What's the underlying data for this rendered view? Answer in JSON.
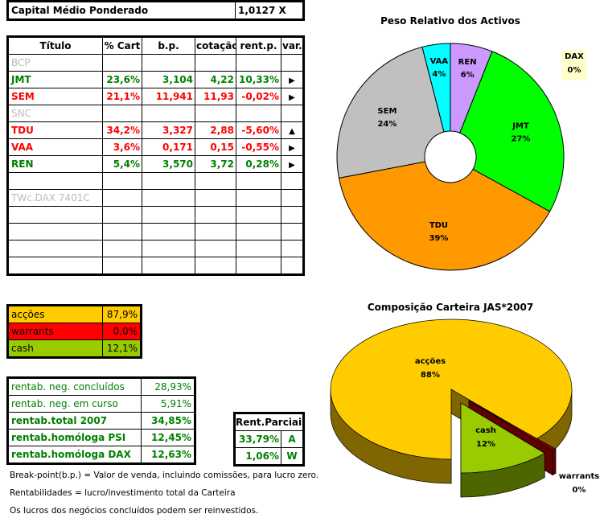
{
  "capital": {
    "label": "Capital Médio Ponderado",
    "value": "1,0127 X"
  },
  "holdings": {
    "headers": [
      "Título",
      "% Cart",
      "b.p.",
      "cotação",
      "rent.p.",
      "var."
    ],
    "rows": [
      {
        "titulo": "BCP",
        "pct": "",
        "bp": "",
        "cot": "",
        "rent": "",
        "var": "",
        "style": "grey"
      },
      {
        "titulo": "JMT",
        "pct": "23,6%",
        "bp": "3,104",
        "cot": "4,22",
        "rent": "10,33%",
        "var": "right",
        "style": "g"
      },
      {
        "titulo": "SEM",
        "pct": "21,1%",
        "bp": "11,941",
        "cot": "11,93",
        "rent": "-0,02%",
        "var": "right",
        "style": "red"
      },
      {
        "titulo": "SNC",
        "pct": "",
        "bp": "",
        "cot": "",
        "rent": "",
        "var": "",
        "style": "grey"
      },
      {
        "titulo": "TDU",
        "pct": "34,2%",
        "bp": "3,327",
        "cot": "2,88",
        "rent": "-5,60%",
        "var": "up",
        "style": "red"
      },
      {
        "titulo": "VAA",
        "pct": "3,6%",
        "bp": "0,171",
        "cot": "0,15",
        "rent": "-0,55%",
        "var": "right",
        "style": "red"
      },
      {
        "titulo": "REN",
        "pct": "5,4%",
        "bp": "3,570",
        "cot": "3,72",
        "rent": "0,28%",
        "var": "right",
        "style": "g"
      },
      {
        "titulo": "",
        "pct": "",
        "bp": "",
        "cot": "",
        "rent": "",
        "var": "",
        "style": ""
      },
      {
        "titulo": "TWc.DAX 7401C",
        "pct": "",
        "bp": "",
        "cot": "",
        "rent": "",
        "var": "",
        "style": "grey"
      },
      {
        "titulo": "",
        "pct": "",
        "bp": "",
        "cot": "",
        "rent": "",
        "var": "",
        "style": ""
      },
      {
        "titulo": "",
        "pct": "",
        "bp": "",
        "cot": "",
        "rent": "",
        "var": "",
        "style": ""
      },
      {
        "titulo": "",
        "pct": "",
        "bp": "",
        "cot": "",
        "rent": "",
        "var": "",
        "style": ""
      },
      {
        "titulo": "",
        "pct": "",
        "bp": "",
        "cot": "",
        "rent": "",
        "var": "",
        "style": ""
      }
    ]
  },
  "allocation": [
    {
      "label": "acções",
      "value": "87,9%",
      "color": "#ffcc00"
    },
    {
      "label": "warrants",
      "value": "0,0%",
      "color": "#ff0000"
    },
    {
      "label": "cash",
      "value": "12,1%",
      "color": "#99cc00"
    }
  ],
  "returns": [
    {
      "label": "rentab. neg. concluídos",
      "value": "28,93%",
      "bold": false
    },
    {
      "label": "rentab. neg. em curso",
      "value": "5,91%",
      "bold": false
    },
    {
      "label": "rentab.total 2007",
      "value": "34,85%",
      "bold": true
    },
    {
      "label": "rentab.homóloga PSI",
      "value": "12,45%",
      "bold": true
    },
    {
      "label": "rentab.homóloga DAX",
      "value": "12,63%",
      "bold": true
    }
  ],
  "partial": {
    "header": "Rent.Parciais",
    "rows": [
      {
        "value": "33,79%",
        "tag": "A"
      },
      {
        "value": "1,06%",
        "tag": "W"
      }
    ]
  },
  "notes": [
    "Break-point(b.p.) = Valor de venda, incluindo comissões, para lucro zero.",
    "Rentabilidades = lucro/investimento total da Carteira",
    "Os lucros dos negócios concluídos podem ser reinvestidos."
  ],
  "chart_data": [
    {
      "type": "pie",
      "title": "Peso Relativo dos Activos",
      "donut": true,
      "slices": [
        {
          "label": "REN",
          "value": 6,
          "color": "#cc99ff"
        },
        {
          "label": "JMT",
          "value": 27,
          "color": "#00ff00"
        },
        {
          "label": "TDU",
          "value": 39,
          "color": "#ff9900"
        },
        {
          "label": "SEM",
          "value": 24,
          "color": "#c0c0c0"
        },
        {
          "label": "VAA",
          "value": 4,
          "color": "#00ffff"
        }
      ],
      "legend": {
        "label": "DAX",
        "value": "0%"
      }
    },
    {
      "type": "pie",
      "title": "Composição Carteira JAS*2007",
      "style": "3d",
      "slices": [
        {
          "label": "acções",
          "value": 88,
          "color": "#ffcc00"
        },
        {
          "label": "cash",
          "value": 12,
          "color": "#99cc00"
        },
        {
          "label": "warrants",
          "value": 0,
          "color": "#800000"
        }
      ]
    }
  ]
}
